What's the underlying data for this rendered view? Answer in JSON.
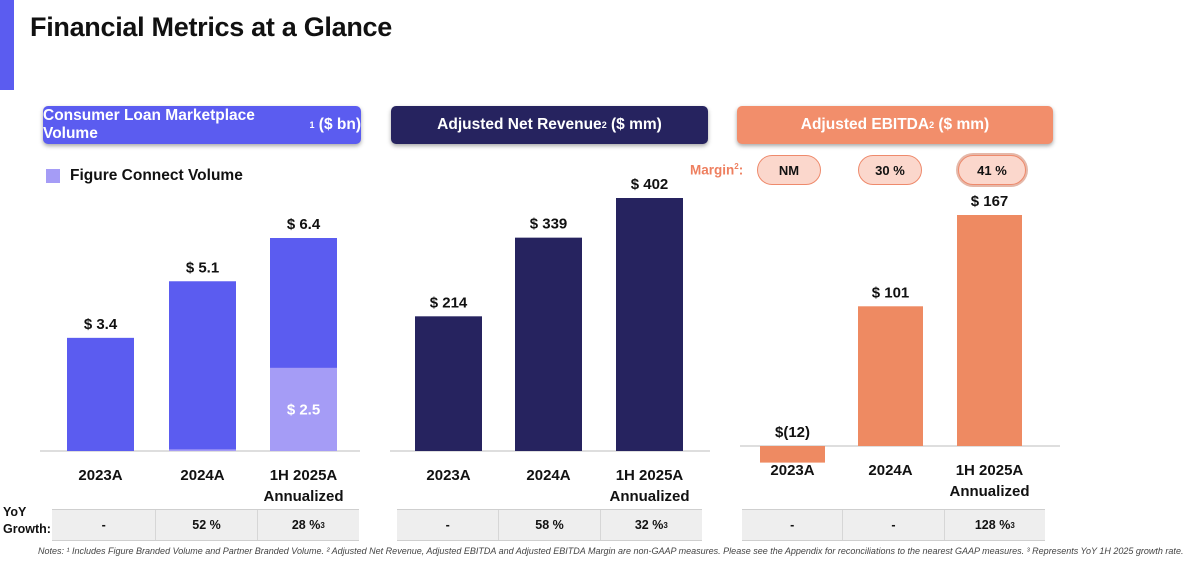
{
  "title": "Financial Metrics at a Glance",
  "colors": {
    "accent": "#5b5cf0",
    "consumer_loan": "#5b5cf0",
    "figure_connect": "#a59cf6",
    "net_revenue": "#26235f",
    "ebitda": "#ee8a62",
    "ebitda_header": "#f28e6b",
    "margin_text": "#ee7f5f"
  },
  "legend": {
    "figure_connect_label": "Figure Connect Volume"
  },
  "margin": {
    "label": "Margin",
    "label_sup": "2",
    "label_suffix": ":",
    "values": [
      "NM",
      "30 %",
      "41 %"
    ]
  },
  "yoy": {
    "label_line1": "YoY",
    "label_line2": "Growth:",
    "consumer_loan": [
      {
        "v": "-",
        "s": ""
      },
      {
        "v": "52 %",
        "s": ""
      },
      {
        "v": "28 %",
        "s": "3"
      }
    ],
    "net_revenue": [
      {
        "v": "-",
        "s": ""
      },
      {
        "v": "58 %",
        "s": ""
      },
      {
        "v": "32 %",
        "s": "3"
      }
    ],
    "ebitda": [
      {
        "v": "-",
        "s": ""
      },
      {
        "v": "-",
        "s": ""
      },
      {
        "v": "128 %",
        "s": "3"
      }
    ]
  },
  "notes": "Notes: ¹ Includes Figure Branded Volume and Partner Branded Volume. ² Adjusted Net Revenue, Adjusted EBITDA and Adjusted EBITDA Margin are non-GAAP measures. Please see the Appendix for reconciliations to the nearest GAAP measures. ³ Represents YoY 1H 2025 growth rate.",
  "chart_data": [
    {
      "type": "bar",
      "title": "Consumer Loan Marketplace Volume",
      "title_sup": "1",
      "title_suffix": " ($ bn)",
      "categories": [
        [
          "2023A"
        ],
        [
          "2024A"
        ],
        [
          "1H 2025A",
          "Annualized"
        ]
      ],
      "series": [
        {
          "values": [
            3.4,
            5.1,
            6.4
          ],
          "labels": [
            "$ 3.4",
            "$ 5.1",
            "$ 6.4"
          ]
        },
        {
          "name": "Figure Connect Volume",
          "values": [
            0,
            0.05,
            2.5
          ],
          "labels": [
            "",
            "",
            "$ 2.5"
          ]
        }
      ],
      "ylim": [
        0,
        7.2
      ]
    },
    {
      "type": "bar",
      "title": "Adjusted Net Revenue",
      "title_sup": "2",
      "title_suffix": " ($ mm)",
      "categories": [
        [
          "2023A"
        ],
        [
          "2024A"
        ],
        [
          "1H 2025A",
          "Annualized"
        ]
      ],
      "series": [
        {
          "values": [
            214,
            339,
            402
          ],
          "labels": [
            "$ 214",
            "$ 339",
            "$ 402"
          ]
        }
      ],
      "ylim": [
        0,
        450
      ]
    },
    {
      "type": "bar",
      "title": "Adjusted EBITDA",
      "title_sup": "2",
      "title_suffix": " ($ mm)",
      "categories": [
        [
          "2023A"
        ],
        [
          "2024A"
        ],
        [
          "1H 2025A",
          "Annualized"
        ]
      ],
      "series": [
        {
          "values": [
            -12,
            101,
            167
          ],
          "labels": [
            "$(12)",
            "$ 101",
            "$ 167"
          ]
        }
      ],
      "ylim": [
        -12,
        190
      ]
    }
  ]
}
